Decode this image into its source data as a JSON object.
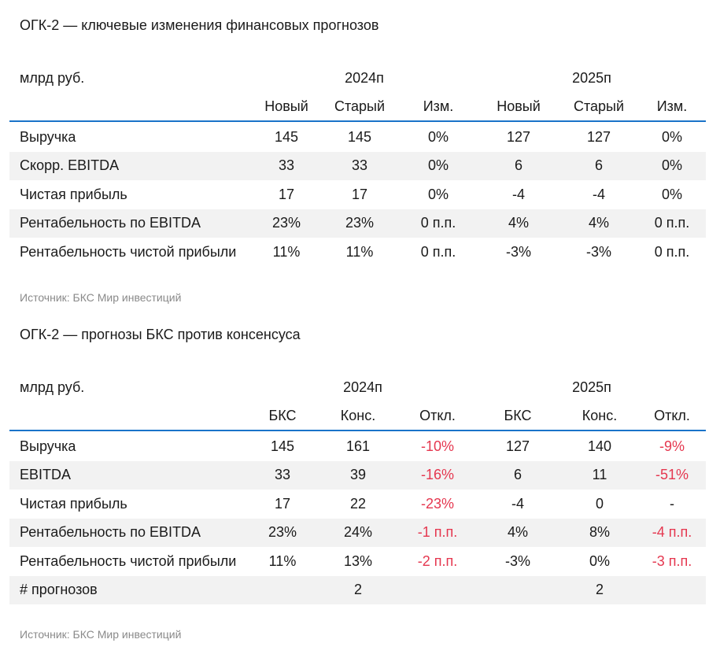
{
  "table1": {
    "title": "ОГК-2 — ключевые изменения финансовых прогнозов",
    "unit": "млрд руб.",
    "years": [
      "2024п",
      "2025п"
    ],
    "subheaders": [
      "Новый",
      "Старый",
      "Изм.",
      "Новый",
      "Старый",
      "Изм."
    ],
    "rows": [
      {
        "label": "Выручка",
        "values": [
          "145",
          "145",
          "0%",
          "127",
          "127",
          "0%"
        ]
      },
      {
        "label": "Скорр. EBITDA",
        "values": [
          "33",
          "33",
          "0%",
          "6",
          "6",
          "0%"
        ]
      },
      {
        "label": "Чистая прибыль",
        "values": [
          "17",
          "17",
          "0%",
          "-4",
          "-4",
          "0%"
        ]
      },
      {
        "label": "Рентабельность по EBITDA",
        "values": [
          "23%",
          "23%",
          "0 п.п.",
          "4%",
          "4%",
          "0 п.п."
        ]
      },
      {
        "label": "Рентабельность чистой прибыли",
        "values": [
          "11%",
          "11%",
          "0 п.п.",
          "-3%",
          "-3%",
          "0 п.п."
        ]
      }
    ],
    "source": "Источник: БКС Мир инвестиций"
  },
  "table2": {
    "title": "ОГК-2 — прогнозы БКС против консенсуса",
    "unit": "млрд руб.",
    "years": [
      "2024п",
      "2025п"
    ],
    "subheaders": [
      "БКС",
      "Конс.",
      "Откл.",
      "БКС",
      "Конс.",
      "Откл."
    ],
    "rows": [
      {
        "label": "Выручка",
        "values": [
          "145",
          "161",
          "-10%",
          "127",
          "140",
          "-9%"
        ]
      },
      {
        "label": "EBITDA",
        "values": [
          "33",
          "39",
          "-16%",
          "6",
          "11",
          "-51%"
        ]
      },
      {
        "label": "Чистая прибыль",
        "values": [
          "17",
          "22",
          "-23%",
          "-4",
          "0",
          "-"
        ]
      },
      {
        "label": "Рентабельность по EBITDA",
        "values": [
          "23%",
          "24%",
          "-1 п.п.",
          "4%",
          "8%",
          "-4 п.п."
        ]
      },
      {
        "label": "Рентабельность чистой прибыли",
        "values": [
          "11%",
          "13%",
          "-2 п.п.",
          "-3%",
          "0%",
          "-3 п.п."
        ]
      },
      {
        "label": "# прогнозов",
        "values": [
          "",
          "2",
          "",
          "",
          "2",
          ""
        ]
      }
    ],
    "source": "Источник: БКС Мир инвестиций"
  },
  "colors": {
    "header_line": "#1a73c9",
    "negative": "#e5374f",
    "shade": "#f2f2f2",
    "source_text": "#8a8a8a"
  }
}
